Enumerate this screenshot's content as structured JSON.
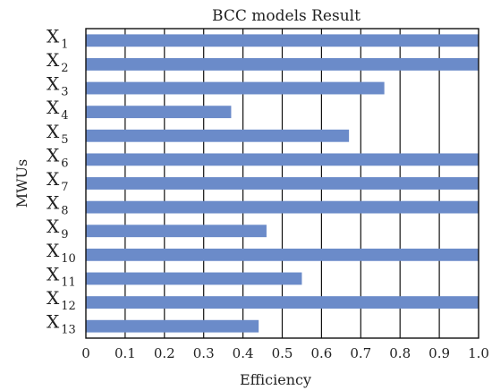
{
  "chart_data": {
    "type": "bar",
    "orientation": "horizontal",
    "title": "BCC models Result",
    "xlabel": "Efficiency",
    "ylabel": "MWUs",
    "xlim": [
      0,
      1.0
    ],
    "xticks": [
      "0",
      "0.1",
      "0.2",
      "0.3",
      "0.4",
      "0.5",
      "0.6",
      "0.7",
      "0.8",
      "0.9",
      "1.0"
    ],
    "categories": [
      {
        "main": "X",
        "sub": "1"
      },
      {
        "main": "X",
        "sub": "2"
      },
      {
        "main": "X",
        "sub": "3"
      },
      {
        "main": "X",
        "sub": "4"
      },
      {
        "main": "X",
        "sub": "5"
      },
      {
        "main": "X",
        "sub": "6"
      },
      {
        "main": "X",
        "sub": "7"
      },
      {
        "main": "X",
        "sub": "8"
      },
      {
        "main": "X",
        "sub": "9"
      },
      {
        "main": "X",
        "sub": "10"
      },
      {
        "main": "X",
        "sub": "11"
      },
      {
        "main": "X",
        "sub": "12"
      },
      {
        "main": "X",
        "sub": "13"
      }
    ],
    "values": [
      1.0,
      1.0,
      0.76,
      0.37,
      0.67,
      1.0,
      1.0,
      1.0,
      0.46,
      1.0,
      0.55,
      1.0,
      0.44
    ],
    "grid": true,
    "bar_color": "#6b8bc9"
  }
}
